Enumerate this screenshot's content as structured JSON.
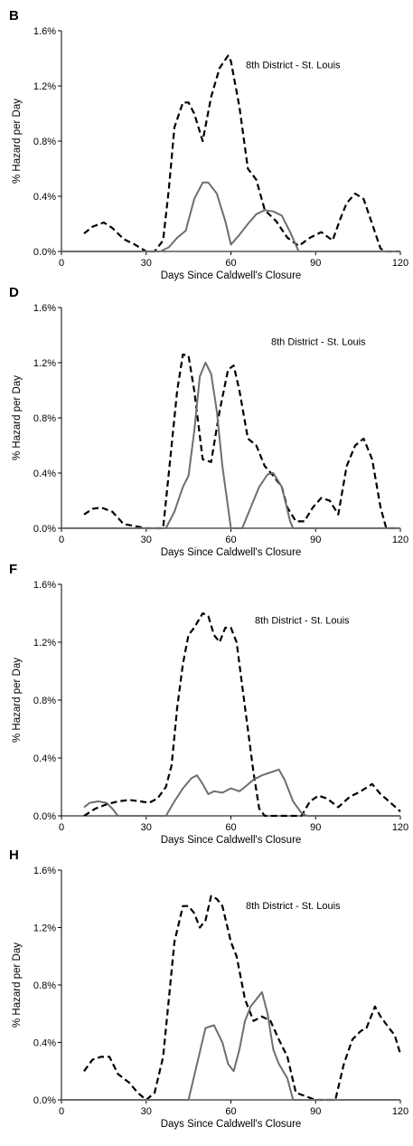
{
  "colors": {
    "dashed_series": "#000000",
    "solid_series": "#6e6e6e",
    "axis": "#000000"
  },
  "chart_data": [
    {
      "type": "line",
      "panel": "B",
      "annotation": "8th District - St. Louis",
      "xlabel": "Days Since Caldwell's Closure",
      "ylabel": "% Hazard per Day",
      "xlim": [
        0,
        120
      ],
      "ylim": [
        0,
        1.6
      ],
      "xticks": [
        "0",
        "30",
        "60",
        "90",
        "120"
      ],
      "yticks": [
        "0.0%",
        "0.4%",
        "0.8%",
        "1.2%",
        "1.6%"
      ],
      "grid": false,
      "legend": "none",
      "series": [
        {
          "style": "dashed",
          "x": [
            8,
            11,
            15,
            18,
            22,
            26,
            30,
            33,
            36,
            38,
            40,
            43,
            45,
            47,
            50,
            53,
            56,
            59,
            60,
            63,
            66,
            69,
            72,
            76,
            80,
            84,
            88,
            92,
            96,
            99,
            101,
            104,
            107,
            110,
            113,
            115,
            120
          ],
          "y": [
            0.13,
            0.18,
            0.21,
            0.17,
            0.09,
            0.05,
            0.0,
            0.0,
            0.08,
            0.45,
            0.9,
            1.08,
            1.08,
            1.0,
            0.8,
            1.12,
            1.33,
            1.42,
            1.38,
            1.05,
            0.6,
            0.52,
            0.3,
            0.22,
            0.1,
            0.04,
            0.1,
            0.14,
            0.08,
            0.25,
            0.35,
            0.42,
            0.38,
            0.2,
            0.02,
            0.0,
            0.0
          ]
        },
        {
          "style": "solid",
          "x": [
            0,
            35,
            38,
            41,
            44,
            47,
            50,
            52,
            55,
            58,
            60,
            63,
            66,
            69,
            72,
            75,
            78,
            81,
            84,
            90,
            120
          ],
          "y": [
            0,
            0,
            0.03,
            0.1,
            0.15,
            0.38,
            0.5,
            0.5,
            0.42,
            0.22,
            0.05,
            0.12,
            0.2,
            0.27,
            0.3,
            0.29,
            0.26,
            0.14,
            0.0,
            0,
            0
          ]
        }
      ]
    },
    {
      "type": "line",
      "panel": "D",
      "annotation": "8th District - St. Louis",
      "xlabel": "Days Since Caldwell's Closure",
      "ylabel": "% Hazard per Day",
      "xlim": [
        0,
        120
      ],
      "ylim": [
        0,
        1.6
      ],
      "xticks": [
        "0",
        "30",
        "60",
        "90",
        "120"
      ],
      "yticks": [
        "0.0%",
        "0.4%",
        "0.8%",
        "1.2%",
        "1.6%"
      ],
      "grid": false,
      "legend": "none",
      "series": [
        {
          "style": "dashed",
          "x": [
            8,
            11,
            14,
            18,
            22,
            30,
            36,
            38,
            41,
            43,
            45,
            47,
            50,
            53,
            56,
            59,
            61,
            63,
            66,
            69,
            72,
            75,
            78,
            80,
            83,
            86,
            89,
            92,
            95,
            98,
            101,
            104,
            107,
            110,
            113,
            115,
            120
          ],
          "y": [
            0.1,
            0.14,
            0.15,
            0.12,
            0.03,
            0.0,
            0.0,
            0.4,
            1.0,
            1.26,
            1.25,
            1.0,
            0.5,
            0.48,
            0.85,
            1.15,
            1.18,
            1.0,
            0.65,
            0.6,
            0.45,
            0.38,
            0.3,
            0.15,
            0.05,
            0.05,
            0.15,
            0.22,
            0.2,
            0.1,
            0.45,
            0.6,
            0.65,
            0.5,
            0.15,
            0.0,
            0.0
          ]
        },
        {
          "style": "solid",
          "x": [
            0,
            37,
            40,
            43,
            45,
            47,
            49,
            51,
            53,
            55,
            57,
            60,
            62,
            64,
            67,
            70,
            73,
            75,
            78,
            81,
            82,
            120
          ],
          "y": [
            0,
            0,
            0.12,
            0.3,
            0.38,
            0.7,
            1.1,
            1.2,
            1.12,
            0.85,
            0.45,
            0.0,
            0.0,
            0.0,
            0.15,
            0.3,
            0.39,
            0.4,
            0.3,
            0.05,
            0.0,
            0
          ]
        }
      ]
    },
    {
      "type": "line",
      "panel": "F",
      "annotation": "8th District - St. Louis",
      "xlabel": "Days Since Caldwell's Closure",
      "ylabel": "% Hazard per Day",
      "xlim": [
        0,
        120
      ],
      "ylim": [
        0,
        1.6
      ],
      "xticks": [
        "0",
        "30",
        "60",
        "90",
        "120"
      ],
      "yticks": [
        "0.0%",
        "0.4%",
        "0.8%",
        "1.2%",
        "1.6%"
      ],
      "grid": false,
      "legend": "none",
      "series": [
        {
          "style": "dashed",
          "x": [
            8,
            12,
            16,
            20,
            24,
            28,
            31,
            34,
            37,
            39,
            41,
            43,
            45,
            47,
            50,
            52,
            54,
            56,
            58,
            60,
            62,
            65,
            68,
            70,
            72,
            80,
            85,
            88,
            91,
            94,
            98,
            102,
            106,
            110,
            113,
            116,
            120
          ],
          "y": [
            0.0,
            0.05,
            0.08,
            0.1,
            0.11,
            0.1,
            0.09,
            0.12,
            0.2,
            0.35,
            0.75,
            1.05,
            1.25,
            1.3,
            1.4,
            1.38,
            1.25,
            1.2,
            1.3,
            1.3,
            1.2,
            0.75,
            0.3,
            0.05,
            0.0,
            0.0,
            0.0,
            0.1,
            0.14,
            0.12,
            0.06,
            0.13,
            0.17,
            0.22,
            0.15,
            0.1,
            0.03
          ]
        },
        {
          "style": "solid",
          "x": [
            8,
            10,
            13,
            16,
            18,
            20,
            37,
            40,
            43,
            46,
            48,
            50,
            52,
            54,
            57,
            60,
            63,
            65,
            68,
            71,
            74,
            77,
            79,
            82,
            85,
            87,
            120
          ],
          "y": [
            0.06,
            0.09,
            0.1,
            0.09,
            0.05,
            0.0,
            0.0,
            0.1,
            0.19,
            0.26,
            0.28,
            0.22,
            0.15,
            0.17,
            0.16,
            0.19,
            0.17,
            0.2,
            0.25,
            0.28,
            0.3,
            0.32,
            0.25,
            0.1,
            0.02,
            0.0,
            0.0
          ]
        }
      ]
    },
    {
      "type": "line",
      "panel": "H",
      "annotation": "8th District - St. Louis",
      "xlabel": "Days Since Caldwell's Closure",
      "ylabel": "% Hazard per Day",
      "xlim": [
        0,
        120
      ],
      "ylim": [
        0,
        1.6
      ],
      "xticks": [
        "0",
        "30",
        "60",
        "90",
        "120"
      ],
      "yticks": [
        "0.0%",
        "0.4%",
        "0.8%",
        "1.2%",
        "1.6%"
      ],
      "grid": false,
      "legend": "none",
      "series": [
        {
          "style": "dashed",
          "x": [
            8,
            11,
            14,
            17,
            20,
            24,
            27,
            30,
            33,
            36,
            38,
            40,
            43,
            45,
            47,
            49,
            51,
            53,
            55,
            57,
            60,
            62,
            65,
            68,
            71,
            74,
            77,
            80,
            83,
            90,
            97,
            100,
            103,
            106,
            108,
            111,
            113,
            116,
            118,
            120
          ],
          "y": [
            0.2,
            0.28,
            0.3,
            0.3,
            0.18,
            0.12,
            0.05,
            0.0,
            0.05,
            0.3,
            0.7,
            1.1,
            1.35,
            1.35,
            1.3,
            1.2,
            1.25,
            1.42,
            1.4,
            1.35,
            1.1,
            1.0,
            0.7,
            0.55,
            0.58,
            0.55,
            0.42,
            0.3,
            0.05,
            0.0,
            0.0,
            0.25,
            0.42,
            0.48,
            0.5,
            0.65,
            0.58,
            0.5,
            0.45,
            0.32
          ]
        },
        {
          "style": "solid",
          "x": [
            0,
            45,
            48,
            51,
            54,
            57,
            59,
            61,
            63,
            65,
            67,
            69,
            71,
            73,
            75,
            77,
            80,
            82,
            120
          ],
          "y": [
            0,
            0,
            0.25,
            0.5,
            0.52,
            0.4,
            0.25,
            0.2,
            0.35,
            0.55,
            0.65,
            0.7,
            0.75,
            0.6,
            0.35,
            0.25,
            0.15,
            0.0,
            0
          ]
        }
      ]
    }
  ]
}
